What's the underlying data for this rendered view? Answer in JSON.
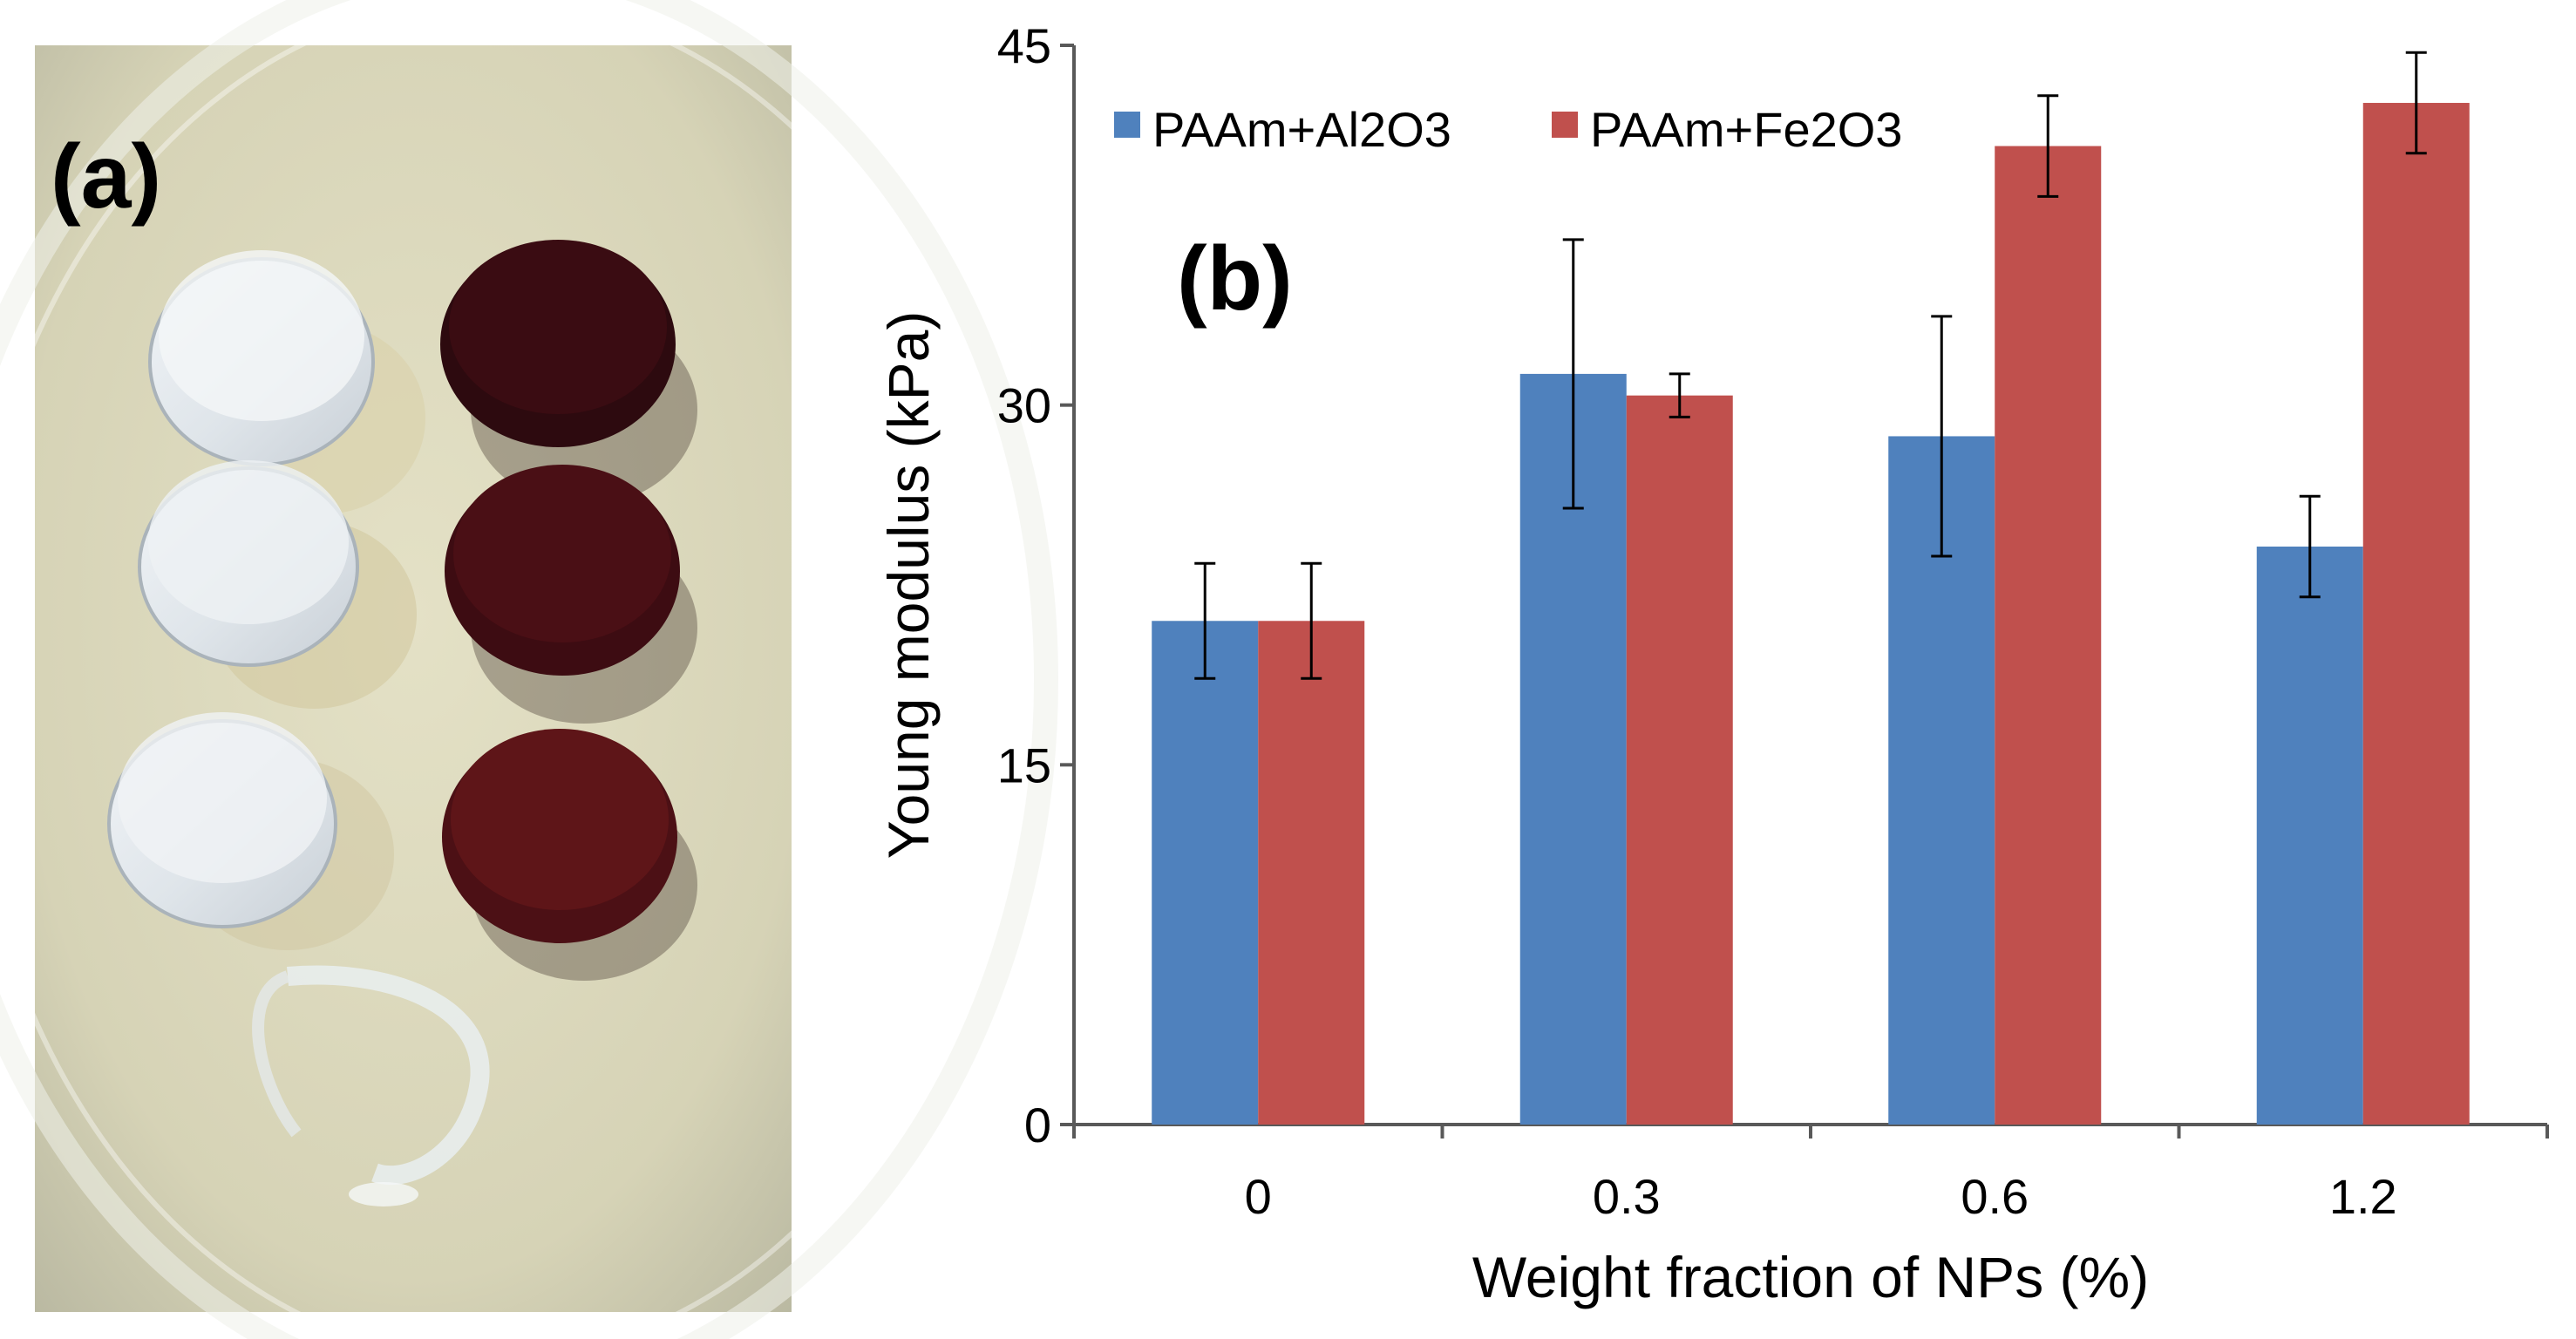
{
  "panel_a": {
    "label": "(a)",
    "samples": [
      {
        "column": "left",
        "row": 1,
        "appearance": "transparent-hydrogel-disc"
      },
      {
        "column": "left",
        "row": 2,
        "appearance": "transparent-hydrogel-disc"
      },
      {
        "column": "left",
        "row": 3,
        "appearance": "transparent-hydrogel-disc"
      },
      {
        "column": "left",
        "row": 4,
        "appearance": "broken-transparent-ring"
      },
      {
        "column": "right",
        "row": 1,
        "appearance": "dark-red-hydrogel-disc",
        "color": "#3a0c12"
      },
      {
        "column": "right",
        "row": 2,
        "appearance": "dark-red-hydrogel-disc",
        "color": "#4a0f15"
      },
      {
        "column": "right",
        "row": 3,
        "appearance": "dark-red-hydrogel-disc",
        "color": "#5e1518"
      }
    ]
  },
  "panel_b": {
    "label": "(b)"
  },
  "colors": {
    "series_al2o3": "#4f81bd",
    "series_fe2o3": "#c0504d",
    "axis": "#595959"
  },
  "chart_data": {
    "type": "bar",
    "title": "",
    "xlabel": "Weight fraction of NPs (%)",
    "ylabel": "Young modulus (kPa)",
    "ylim": [
      0,
      45
    ],
    "yticks": [
      "0",
      "15",
      "30",
      "45"
    ],
    "categories": [
      "0",
      "0.3",
      "0.6",
      "1.2"
    ],
    "legend_position": "top-left",
    "series": [
      {
        "name": "PAAm+Al2O3",
        "values": [
          21,
          31.3,
          28.7,
          24.1
        ],
        "errors": [
          2.4,
          5.6,
          5.0,
          2.1
        ]
      },
      {
        "name": "PAAm+Fe2O3",
        "values": [
          21,
          30.4,
          40.8,
          42.6
        ],
        "errors": [
          2.4,
          0.9,
          2.1,
          2.1
        ]
      }
    ]
  }
}
